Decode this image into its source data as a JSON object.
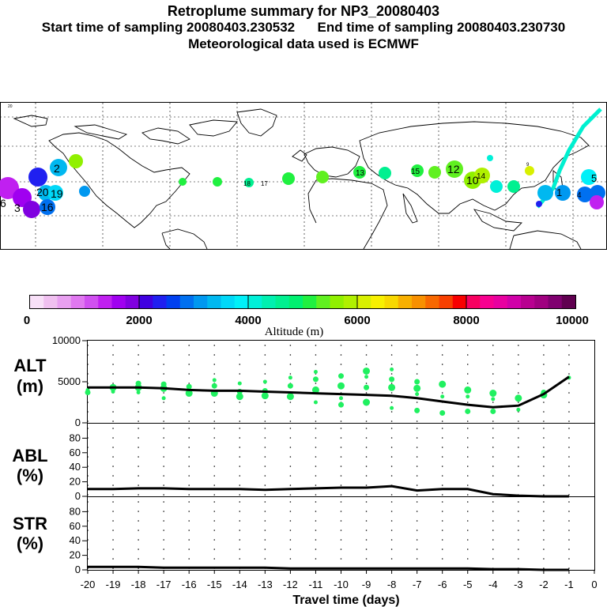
{
  "header": {
    "title": "Retroplume summary for NP3_20080403",
    "start_label": "Start time of sampling 20080403.230532",
    "end_label": "End time of sampling 20080403.230730",
    "met_label": "Meteorological data used is ECMWF"
  },
  "map": {
    "legend_tag": "20",
    "labels": [
      {
        "day": "6",
        "alt": 1800
      },
      {
        "day": "3",
        "alt": 1200
      },
      {
        "day": "2",
        "alt": 3000
      },
      {
        "day": "20",
        "alt": 3500
      },
      {
        "day": "19",
        "alt": 3800
      },
      {
        "day": "16",
        "alt": 3200
      },
      {
        "day": "18",
        "alt": 3900
      },
      {
        "day": "17",
        "alt": 4200
      },
      {
        "day": "10",
        "alt": 6300
      },
      {
        "day": "12",
        "alt": 5800
      },
      {
        "day": "14",
        "alt": 6000
      },
      {
        "day": "13",
        "alt": 5500
      },
      {
        "day": "15",
        "alt": 5200
      },
      {
        "day": "9",
        "alt": 6200
      },
      {
        "day": "5",
        "alt": 3600
      },
      {
        "day": "1",
        "alt": 4100
      },
      {
        "day": "4",
        "alt": 2400
      }
    ]
  },
  "colorbar": {
    "axis_title": "Altitude (m)",
    "tick_labels": [
      "0",
      "2000",
      "4000",
      "6000",
      "8000",
      "10000"
    ],
    "colors": [
      "#f8e0f8",
      "#f0c0f0",
      "#e8a0f0",
      "#e078f0",
      "#d050f0",
      "#c020f0",
      "#a000f0",
      "#8000e0",
      "#4000e0",
      "#2020f0",
      "#0040f0",
      "#0070f0",
      "#0098f0",
      "#00b8f0",
      "#00d8f8",
      "#00f0f8",
      "#00f0d8",
      "#00f0b0",
      "#00f090",
      "#00f070",
      "#20f040",
      "#60f020",
      "#90f000",
      "#b0f000",
      "#d8f000",
      "#f8f000",
      "#f8d800",
      "#f8b000",
      "#f89000",
      "#f86800",
      "#f84000",
      "#f80000",
      "#f80060",
      "#f80090",
      "#e800a0",
      "#d000a8",
      "#b80090",
      "#a00080",
      "#800070",
      "#600050"
    ]
  },
  "chart_data": [
    {
      "type": "line",
      "panel": "ALT",
      "ylabel": "ALT\n(m)",
      "ylabel_line1": "ALT",
      "ylabel_line2": "(m)",
      "ylim": [
        0,
        10000
      ],
      "yticks": [
        "0",
        "5000",
        "10000"
      ],
      "series": [
        {
          "name": "median altitude",
          "x": [
            -20,
            -19,
            -18,
            -17,
            -16,
            -15,
            -14,
            -13,
            -12,
            -11,
            -10,
            -9,
            -8,
            -7,
            -6,
            -5,
            -4,
            -3,
            -2,
            -1
          ],
          "values": [
            4300,
            4300,
            4300,
            4200,
            4000,
            3900,
            3900,
            3800,
            3700,
            3600,
            3500,
            3400,
            3300,
            3000,
            2600,
            2200,
            1900,
            2100,
            3500,
            5600
          ]
        }
      ],
      "scatter_points": [
        [
          -20,
          4000
        ],
        [
          -20,
          3700
        ],
        [
          -19,
          4300
        ],
        [
          -19,
          3800
        ],
        [
          -18,
          4800
        ],
        [
          -18,
          4300
        ],
        [
          -18,
          3700
        ],
        [
          -17,
          4700
        ],
        [
          -17,
          4200
        ],
        [
          -17,
          3000
        ],
        [
          -16,
          4400
        ],
        [
          -16,
          3600
        ],
        [
          -15,
          5200
        ],
        [
          -15,
          4500
        ],
        [
          -15,
          3600
        ],
        [
          -14,
          4800
        ],
        [
          -14,
          3800
        ],
        [
          -14,
          3200
        ],
        [
          -13,
          5000
        ],
        [
          -13,
          3900
        ],
        [
          -13,
          3300
        ],
        [
          -12,
          5500
        ],
        [
          -12,
          4500
        ],
        [
          -12,
          3200
        ],
        [
          -11,
          6200
        ],
        [
          -11,
          5300
        ],
        [
          -11,
          4000
        ],
        [
          -11,
          2500
        ],
        [
          -10,
          5700
        ],
        [
          -10,
          4500
        ],
        [
          -10,
          3000
        ],
        [
          -10,
          2200
        ],
        [
          -9,
          6300
        ],
        [
          -9,
          5600
        ],
        [
          -9,
          4300
        ],
        [
          -9,
          2500
        ],
        [
          -8,
          6500
        ],
        [
          -8,
          5300
        ],
        [
          -8,
          4300
        ],
        [
          -8,
          1800
        ],
        [
          -7,
          5000
        ],
        [
          -7,
          4200
        ],
        [
          -7,
          3500
        ],
        [
          -7,
          1500
        ],
        [
          -6,
          4700
        ],
        [
          -6,
          3200
        ],
        [
          -6,
          1200
        ],
        [
          -5,
          4000
        ],
        [
          -5,
          3200
        ],
        [
          -5,
          1400
        ],
        [
          -4,
          3600
        ],
        [
          -4,
          2900
        ],
        [
          -4,
          1400
        ],
        [
          -3,
          3000
        ],
        [
          -3,
          1600
        ],
        [
          -2,
          3700
        ],
        [
          -2,
          3400
        ],
        [
          -1,
          5500
        ]
      ]
    },
    {
      "type": "line",
      "panel": "ABL",
      "ylabel_line1": "ABL",
      "ylabel_line2": "(%)",
      "ylim": [
        0,
        100
      ],
      "yticks": [
        "0",
        "20",
        "40",
        "60",
        "80"
      ],
      "series": [
        {
          "name": "fraction in boundary layer",
          "x": [
            -20,
            -19,
            -18,
            -17,
            -16,
            -15,
            -14,
            -13,
            -12,
            -11,
            -10,
            -9,
            -8,
            -7,
            -6,
            -5,
            -4,
            -3,
            -2,
            -1
          ],
          "values": [
            10,
            10,
            11,
            11,
            10,
            10,
            10,
            9,
            10,
            11,
            12,
            12,
            14,
            8,
            10,
            10,
            3,
            1,
            0,
            0
          ]
        }
      ]
    },
    {
      "type": "line",
      "panel": "STR",
      "ylabel_line1": "STR",
      "ylabel_line2": "(%)",
      "ylim": [
        0,
        100
      ],
      "yticks": [
        "0",
        "20",
        "40",
        "60",
        "80"
      ],
      "xlabel": "Travel time (days)",
      "xticks": [
        "-20",
        "-19",
        "-18",
        "-17",
        "-16",
        "-15",
        "-14",
        "-13",
        "-12",
        "-11",
        "-10",
        "-9",
        "-8",
        "-7",
        "-6",
        "-5",
        "-4",
        "-3",
        "-2",
        "-1",
        "0"
      ],
      "series": [
        {
          "name": "fraction in stratosphere",
          "x": [
            -20,
            -19,
            -18,
            -17,
            -16,
            -15,
            -14,
            -13,
            -12,
            -11,
            -10,
            -9,
            -8,
            -7,
            -6,
            -5,
            -4,
            -3,
            -2,
            -1
          ],
          "values": [
            4,
            4,
            4,
            3,
            3,
            3,
            3,
            3,
            2,
            2,
            2,
            2,
            2,
            2,
            2,
            2,
            1,
            1,
            0,
            0
          ]
        }
      ]
    }
  ]
}
